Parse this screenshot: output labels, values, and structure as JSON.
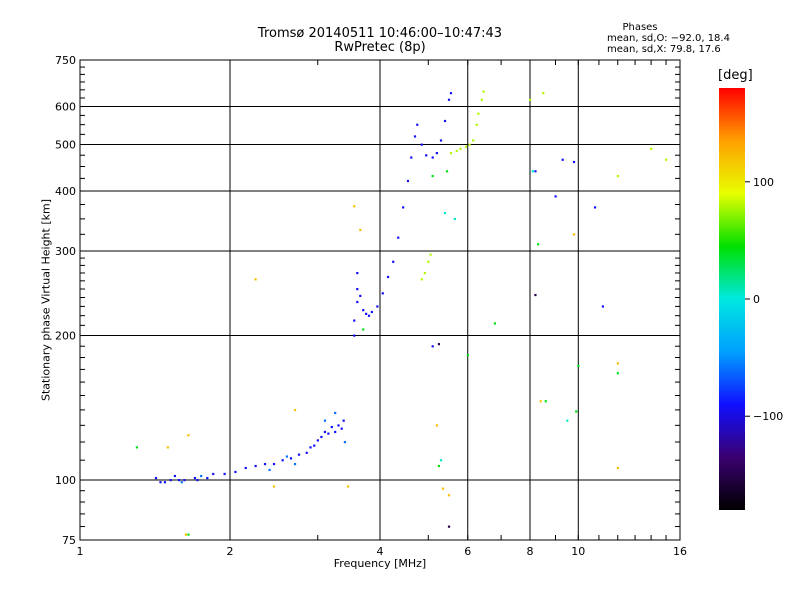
{
  "chart_data": {
    "type": "scatter",
    "title": "Tromsø 20140511 10:46:00–10:47:43",
    "subtitle": "RwPretec (8p)",
    "xlabel": "Frequency [MHz]",
    "ylabel": "Stationary phase Virtual Height [km]",
    "x_scale": "log",
    "y_scale": "log",
    "xlim": [
      1,
      16
    ],
    "ylim": [
      75,
      750
    ],
    "x_ticks": [
      1,
      2,
      4,
      6,
      8,
      10,
      16
    ],
    "y_ticks": [
      75,
      100,
      200,
      300,
      400,
      500,
      600,
      750
    ],
    "grid": true,
    "phases_header": "Phases",
    "phases_o": "mean, sd,O: −92.0, 18.4",
    "phases_x": "mean, sd,X:  79.8, 17.6",
    "colorbar": {
      "label": "[deg]",
      "ticks": [
        100,
        0,
        -100
      ],
      "range": [
        -180,
        180
      ],
      "colormap": [
        "#000000",
        "#3a0070",
        "#1010ff",
        "#00a0ff",
        "#00e8e0",
        "#00e000",
        "#e8ff00",
        "#ffa000",
        "#ff0000"
      ]
    },
    "series": [
      {
        "phase_deg": -92,
        "points": [
          [
            1.42,
            101
          ],
          [
            1.45,
            99
          ],
          [
            1.48,
            99
          ],
          [
            1.52,
            100
          ],
          [
            1.55,
            102
          ],
          [
            1.58,
            100
          ],
          [
            1.62,
            100
          ],
          [
            1.7,
            101
          ],
          [
            1.72,
            100
          ],
          [
            1.8,
            101
          ],
          [
            1.85,
            103
          ],
          [
            1.95,
            103
          ],
          [
            2.05,
            104
          ],
          [
            2.15,
            106
          ],
          [
            2.25,
            107
          ],
          [
            2.35,
            108
          ],
          [
            2.45,
            108
          ],
          [
            2.55,
            110
          ],
          [
            2.65,
            111
          ],
          [
            2.75,
            113
          ],
          [
            2.85,
            114
          ],
          [
            2.9,
            117
          ],
          [
            2.95,
            118
          ],
          [
            3.0,
            121
          ],
          [
            3.05,
            123
          ],
          [
            3.1,
            126
          ],
          [
            3.15,
            125
          ],
          [
            3.2,
            129
          ],
          [
            3.25,
            126
          ],
          [
            3.3,
            130
          ],
          [
            3.35,
            128
          ],
          [
            3.38,
            133
          ],
          [
            3.55,
            200
          ],
          [
            3.55,
            215
          ],
          [
            3.6,
            235
          ],
          [
            3.6,
            250
          ],
          [
            3.6,
            270
          ],
          [
            3.65,
            242
          ],
          [
            3.7,
            226
          ],
          [
            3.75,
            222
          ],
          [
            3.8,
            220
          ],
          [
            3.85,
            224
          ],
          [
            3.95,
            230
          ],
          [
            4.05,
            245
          ],
          [
            4.15,
            265
          ],
          [
            4.25,
            285
          ],
          [
            4.35,
            320
          ],
          [
            4.45,
            370
          ],
          [
            4.55,
            420
          ],
          [
            4.62,
            470
          ],
          [
            4.7,
            520
          ],
          [
            4.75,
            550
          ],
          [
            4.85,
            500
          ],
          [
            4.95,
            475
          ],
          [
            5.1,
            470
          ],
          [
            5.2,
            480
          ],
          [
            5.3,
            510
          ],
          [
            5.4,
            560
          ],
          [
            5.5,
            620
          ],
          [
            5.55,
            640
          ],
          [
            5.1,
            190
          ],
          [
            8.2,
            440
          ],
          [
            9.0,
            390
          ],
          [
            9.3,
            465
          ],
          [
            9.8,
            460
          ],
          [
            10.8,
            370
          ],
          [
            11.2,
            230
          ]
        ]
      },
      {
        "phase_deg": 79.8,
        "points": [
          [
            5.55,
            480
          ],
          [
            5.7,
            485
          ],
          [
            5.8,
            490
          ],
          [
            5.95,
            495
          ],
          [
            6.05,
            500
          ],
          [
            6.15,
            510
          ],
          [
            6.25,
            550
          ],
          [
            6.3,
            580
          ],
          [
            6.4,
            620
          ],
          [
            6.45,
            645
          ],
          [
            4.85,
            262
          ],
          [
            4.92,
            270
          ],
          [
            5.0,
            285
          ],
          [
            5.05,
            295
          ],
          [
            8.5,
            640
          ],
          [
            8.0,
            620
          ],
          [
            14.0,
            490
          ],
          [
            15.0,
            465
          ],
          [
            12.0,
            430
          ]
        ]
      },
      {
        "phase_deg": -60,
        "points": [
          [
            1.6,
            99
          ],
          [
            1.75,
            102
          ],
          [
            2.4,
            105
          ],
          [
            2.6,
            112
          ],
          [
            2.7,
            108
          ],
          [
            3.1,
            133
          ],
          [
            3.25,
            138
          ],
          [
            3.4,
            120
          ]
        ]
      },
      {
        "phase_deg": 120,
        "points": [
          [
            1.5,
            117
          ],
          [
            1.65,
            124
          ],
          [
            2.25,
            262
          ],
          [
            2.45,
            97
          ],
          [
            2.7,
            140
          ],
          [
            3.45,
            97
          ],
          [
            3.55,
            372
          ],
          [
            3.65,
            332
          ],
          [
            5.35,
            96
          ],
          [
            5.5,
            93
          ],
          [
            8.4,
            146
          ],
          [
            9.8,
            325
          ],
          [
            12.0,
            106
          ],
          [
            12.0,
            175
          ],
          [
            5.2,
            130
          ],
          [
            1.63,
            77
          ]
        ]
      },
      {
        "phase_deg": 40,
        "points": [
          [
            1.3,
            117
          ],
          [
            5.45,
            440
          ],
          [
            5.1,
            430
          ],
          [
            6.8,
            212
          ],
          [
            6.0,
            182
          ],
          [
            12.0,
            167
          ],
          [
            10.0,
            173
          ],
          [
            8.6,
            146
          ],
          [
            9.9,
            139
          ],
          [
            5.25,
            107
          ],
          [
            8.3,
            310
          ],
          [
            3.7,
            206
          ],
          [
            1.65,
            77
          ]
        ]
      },
      {
        "phase_deg": 5,
        "points": [
          [
            5.65,
            350
          ],
          [
            5.4,
            360
          ],
          [
            8.1,
            440
          ],
          [
            9.5,
            133
          ],
          [
            5.3,
            110
          ]
        ]
      },
      {
        "phase_deg": -150,
        "points": [
          [
            5.25,
            192
          ],
          [
            8.2,
            243
          ],
          [
            5.5,
            80
          ]
        ]
      }
    ]
  }
}
